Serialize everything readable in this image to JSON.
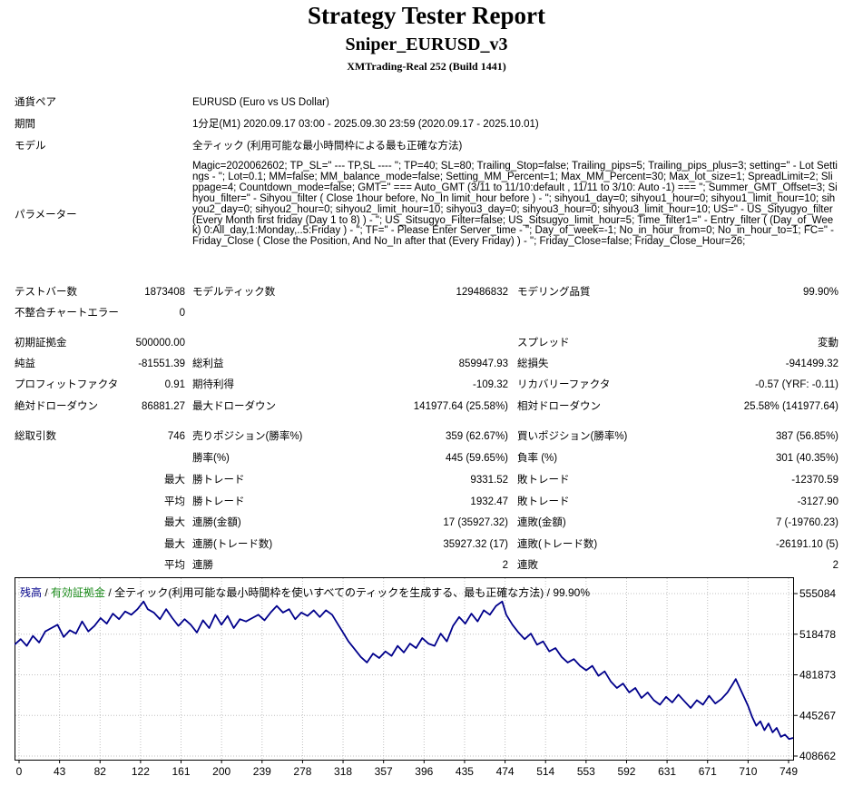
{
  "header": {
    "title": "Strategy Tester Report",
    "ea_name": "Sniper_EURUSD_v3",
    "server": "XMTrading-Real 252 (Build 1441)"
  },
  "settings": [
    {
      "label": "通貨ペア",
      "value": "EURUSD (Euro vs US Dollar)"
    },
    {
      "label": "期間",
      "value": "1分足(M1) 2020.09.17 03:00 - 2025.09.30 23:59 (2020.09.17 - 2025.10.01)"
    },
    {
      "label": "モデル",
      "value": "全ティック (利用可能な最小時間枠による最も正確な方法)"
    },
    {
      "label": "パラメーター",
      "value": "Magic=2020062602; TP_SL=\" --- TP,SL ---- \"; TP=40; SL=80; Trailing_Stop=false; Trailing_pips=5; Trailing_pips_plus=3; setting=\" - Lot Settings - \"; Lot=0.1; MM=false; MM_balance_mode=false; Setting_MM_Percent=1; Max_MM_Percent=30; Max_lot_size=1; SpreadLimit=2; Slippage=4; Countdown_mode=false; GMT=\" === Auto_GMT (3/11 to 11/10:default , 11/11 to 3/10: Auto -1) === \"; Summer_GMT_Offset=3; Sihyou_filter=\" - Sihyou_filter ( Close 1hour before, No_In limit_hour before ) - \"; sihyou1_day=0; sihyou1_hour=0; sihyou1_limit_hour=10; sihyou2_day=0; sihyou2_hour=0; sihyou2_limit_hour=10; sihyou3_day=0; sihyou3_hour=0; sihyou3_limit_hour=10; US=\" - US_Sityugyo_filter (Every Month first friday (Day 1 to 8) ) - \"; US_Sitsugyo_Filter=false; US_Sitsugyo_limit_hour=5; Time_filter1=\" - Entry_filter ( (Day_of_Week) 0:All_day,1:Monday,..5:Friday ) - \"; TF=\" - Please Enter Server_time - \"; Day_of_week=-1; No_in_hour_from=0; No_in_hour_to=1; FC=\" - Friday_Close ( Close the Position, And No_In after that (Every Friday) ) - \"; Friday_Close=false; Friday_Close_Hour=26;"
    }
  ],
  "bars": {
    "test_bars_label": "テストバー数",
    "test_bars": "1873408",
    "model_ticks_label": "モデルティック数",
    "model_ticks": "129486832",
    "quality_label": "モデリング品質",
    "quality": "99.90%",
    "mismatch_label": "不整合チャートエラー",
    "mismatch": "0"
  },
  "results": {
    "initial_deposit_label": "初期証拠金",
    "initial_deposit": "500000.00",
    "spread_label": "スプレッド",
    "spread": "変動",
    "net_profit_label": "純益",
    "net_profit": "-81551.39",
    "gross_profit_label": "総利益",
    "gross_profit": "859947.93",
    "gross_loss_label": "総損失",
    "gross_loss": "-941499.32",
    "profit_factor_label": "プロフィットファクタ",
    "profit_factor": "0.91",
    "expected_payoff_label": "期待利得",
    "expected_payoff": "-109.32",
    "recovery_factor_label": "リカバリーファクタ",
    "recovery_factor": "-0.57 (YRF: -0.11)",
    "abs_dd_label": "絶対ドローダウン",
    "abs_dd": "86881.27",
    "max_dd_label": "最大ドローダウン",
    "max_dd": "141977.64 (25.58%)",
    "rel_dd_label": "相対ドローダウン",
    "rel_dd": "25.58% (141977.64)"
  },
  "trades": {
    "total_label": "総取引数",
    "total": "746",
    "short_label": "売りポジション(勝率%)",
    "short": "359 (62.67%)",
    "long_label": "買いポジション(勝率%)",
    "long": "387 (56.85%)",
    "win_label": "勝率(%)",
    "win": "445 (59.65%)",
    "loss_label": "負率 (%)",
    "loss": "301 (40.35%)",
    "rows": [
      {
        "prefix": "最大",
        "l1": "勝トレード",
        "v1": "9331.52",
        "l2": "敗トレード",
        "v2": "-12370.59"
      },
      {
        "prefix": "平均",
        "l1": "勝トレード",
        "v1": "1932.47",
        "l2": "敗トレード",
        "v2": "-3127.90"
      },
      {
        "prefix": "最大",
        "l1": "連勝(金額)",
        "v1": "17 (35927.32)",
        "l2": "連敗(金額)",
        "v2": "7 (-19760.23)"
      },
      {
        "prefix": "最大",
        "l1": "連勝(トレード数)",
        "v1": "35927.32 (17)",
        "l2": "連敗(トレード数)",
        "v2": "-26191.10 (5)"
      },
      {
        "prefix": "平均",
        "l1": "連勝",
        "v1": "2",
        "l2": "連敗",
        "v2": "2"
      }
    ]
  },
  "chart_data": {
    "type": "line",
    "legend": {
      "balance": "残高",
      "sep1": " / ",
      "equity": "有効証拠金",
      "sep2": " / ",
      "model": "全ティック(利用可能な最小時間枠を使いすべてのティックを生成する、最も正確な方法)",
      "sep3": " / ",
      "quality": "99.90%"
    },
    "colors": {
      "balance": "#00008b",
      "equity": "#1a8a1a",
      "grid": "#c0c0c0"
    },
    "x_ticks": [
      "0",
      "43",
      "82",
      "122",
      "161",
      "200",
      "239",
      "278",
      "318",
      "357",
      "396",
      "435",
      "474",
      "514",
      "553",
      "592",
      "631",
      "671",
      "710",
      "749"
    ],
    "y_ticks": [
      "555084",
      "518478",
      "481873",
      "445267",
      "408662"
    ],
    "ylim": [
      408662,
      555084
    ],
    "xlim": [
      0,
      760
    ],
    "series": [
      {
        "values": [
          [
            0,
            509000
          ],
          [
            6,
            514000
          ],
          [
            12,
            508000
          ],
          [
            18,
            517000
          ],
          [
            24,
            511000
          ],
          [
            30,
            521000
          ],
          [
            36,
            524000
          ],
          [
            42,
            527000
          ],
          [
            48,
            516000
          ],
          [
            54,
            522000
          ],
          [
            60,
            519000
          ],
          [
            66,
            530000
          ],
          [
            72,
            521000
          ],
          [
            78,
            526000
          ],
          [
            84,
            533000
          ],
          [
            90,
            528000
          ],
          [
            96,
            537000
          ],
          [
            102,
            532000
          ],
          [
            108,
            539000
          ],
          [
            114,
            536000
          ],
          [
            120,
            541000
          ],
          [
            126,
            548000
          ],
          [
            130,
            541000
          ],
          [
            136,
            538000
          ],
          [
            142,
            532000
          ],
          [
            148,
            541000
          ],
          [
            154,
            533000
          ],
          [
            160,
            526000
          ],
          [
            166,
            532000
          ],
          [
            172,
            527000
          ],
          [
            178,
            520000
          ],
          [
            184,
            531000
          ],
          [
            190,
            524000
          ],
          [
            196,
            536000
          ],
          [
            202,
            527000
          ],
          [
            208,
            535000
          ],
          [
            214,
            524000
          ],
          [
            220,
            532000
          ],
          [
            226,
            530000
          ],
          [
            232,
            533000
          ],
          [
            238,
            536000
          ],
          [
            244,
            531000
          ],
          [
            250,
            538000
          ],
          [
            256,
            544000
          ],
          [
            262,
            538000
          ],
          [
            268,
            541000
          ],
          [
            274,
            532000
          ],
          [
            280,
            538000
          ],
          [
            286,
            535000
          ],
          [
            292,
            540000
          ],
          [
            298,
            534000
          ],
          [
            304,
            540000
          ],
          [
            310,
            536000
          ],
          [
            316,
            527000
          ],
          [
            320,
            521000
          ],
          [
            326,
            512000
          ],
          [
            332,
            505000
          ],
          [
            338,
            498000
          ],
          [
            344,
            493000
          ],
          [
            350,
            501000
          ],
          [
            356,
            497000
          ],
          [
            362,
            503000
          ],
          [
            368,
            499000
          ],
          [
            374,
            508000
          ],
          [
            380,
            502000
          ],
          [
            386,
            510000
          ],
          [
            392,
            506000
          ],
          [
            398,
            515000
          ],
          [
            404,
            510000
          ],
          [
            410,
            508000
          ],
          [
            416,
            519000
          ],
          [
            422,
            512000
          ],
          [
            428,
            526000
          ],
          [
            434,
            534000
          ],
          [
            440,
            528000
          ],
          [
            446,
            537000
          ],
          [
            452,
            530000
          ],
          [
            458,
            540000
          ],
          [
            464,
            536000
          ],
          [
            470,
            544000
          ],
          [
            476,
            548000
          ],
          [
            480,
            536000
          ],
          [
            486,
            527000
          ],
          [
            492,
            520000
          ],
          [
            498,
            514000
          ],
          [
            504,
            519000
          ],
          [
            510,
            509000
          ],
          [
            516,
            512000
          ],
          [
            522,
            503000
          ],
          [
            528,
            506000
          ],
          [
            534,
            498000
          ],
          [
            540,
            493000
          ],
          [
            546,
            496000
          ],
          [
            552,
            490000
          ],
          [
            558,
            486000
          ],
          [
            564,
            490000
          ],
          [
            570,
            481000
          ],
          [
            576,
            485000
          ],
          [
            582,
            476000
          ],
          [
            588,
            470000
          ],
          [
            594,
            474000
          ],
          [
            600,
            466000
          ],
          [
            606,
            470000
          ],
          [
            612,
            461000
          ],
          [
            618,
            466000
          ],
          [
            624,
            459000
          ],
          [
            630,
            455000
          ],
          [
            636,
            462000
          ],
          [
            642,
            457000
          ],
          [
            648,
            464000
          ],
          [
            654,
            458000
          ],
          [
            660,
            452000
          ],
          [
            666,
            459000
          ],
          [
            672,
            455000
          ],
          [
            678,
            463000
          ],
          [
            684,
            456000
          ],
          [
            690,
            460000
          ],
          [
            696,
            466000
          ],
          [
            700,
            472000
          ],
          [
            704,
            478000
          ],
          [
            708,
            470000
          ],
          [
            712,
            462000
          ],
          [
            716,
            454000
          ],
          [
            720,
            444000
          ],
          [
            724,
            436000
          ],
          [
            728,
            440000
          ],
          [
            732,
            432000
          ],
          [
            736,
            438000
          ],
          [
            740,
            430000
          ],
          [
            744,
            434000
          ],
          [
            748,
            426000
          ],
          [
            752,
            428000
          ],
          [
            756,
            424000
          ],
          [
            760,
            425000
          ]
        ]
      }
    ]
  }
}
